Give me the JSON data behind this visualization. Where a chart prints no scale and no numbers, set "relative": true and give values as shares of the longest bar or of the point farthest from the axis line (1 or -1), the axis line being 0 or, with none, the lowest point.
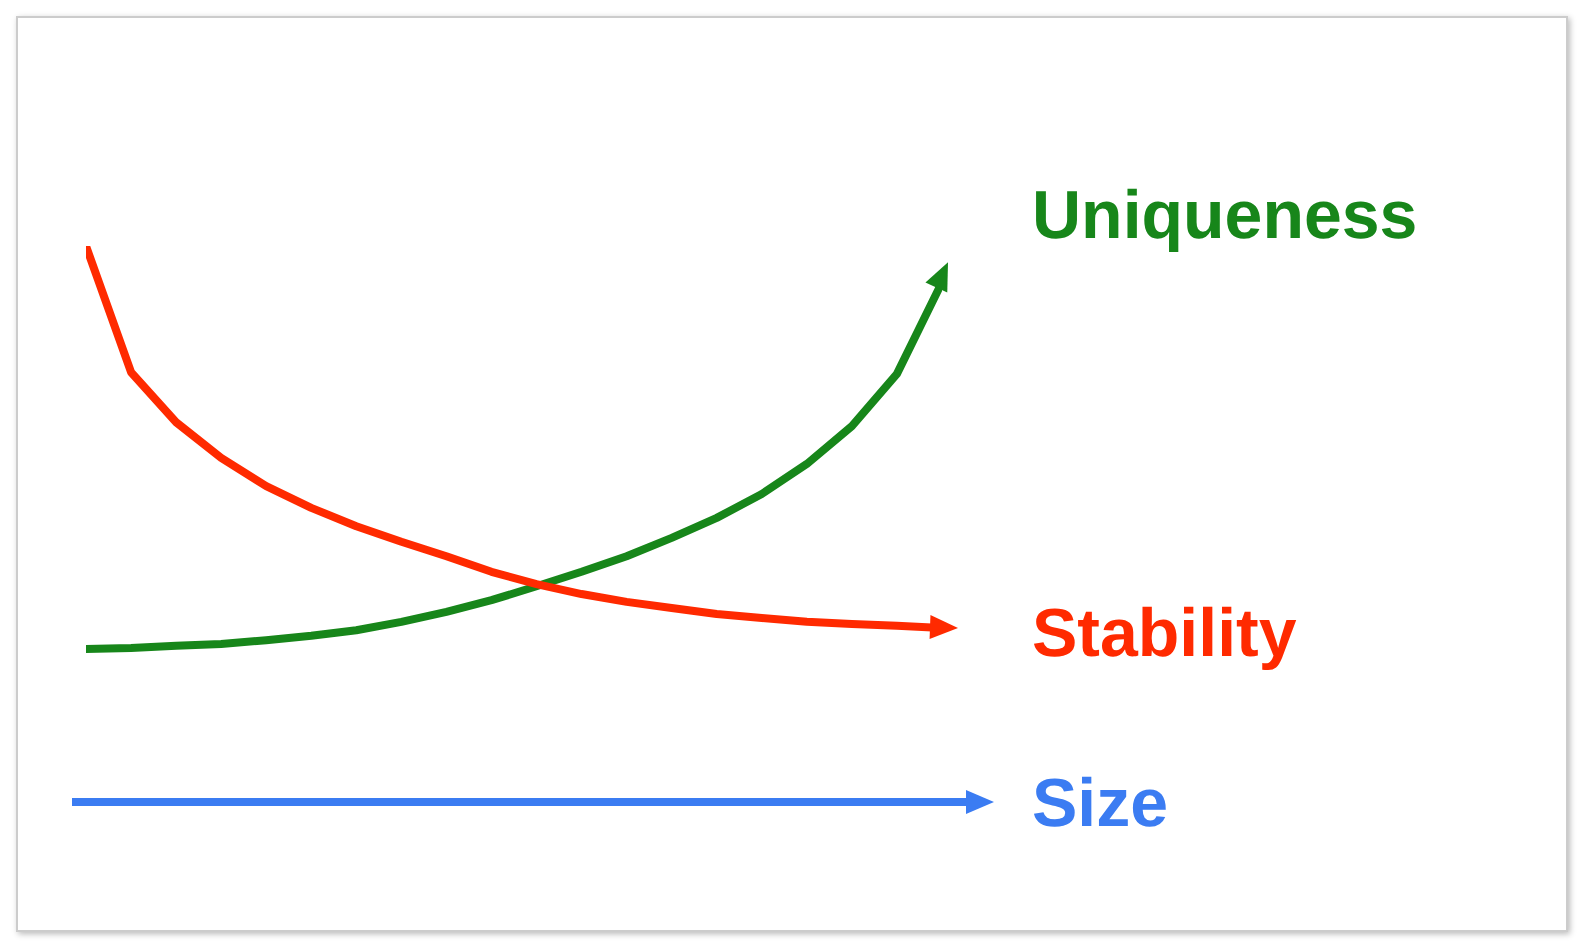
{
  "chart_data": {
    "type": "line",
    "relative": true,
    "xlabel": "Size",
    "marker": "none",
    "legend": "right",
    "grid": false,
    "categories": [
      null,
      null,
      null,
      null,
      null,
      null,
      null,
      null,
      null,
      null,
      null,
      null,
      null,
      null,
      null,
      null,
      null,
      null,
      null,
      null
    ],
    "series": [
      {
        "name": "Uniqueness",
        "color": "#17861a",
        "values": [
          0.275,
          0.277,
          0.281,
          0.284,
          0.291,
          0.299,
          0.309,
          0.324,
          0.342,
          0.363,
          0.388,
          0.414,
          0.442,
          0.475,
          0.511,
          0.554,
          0.608,
          0.676,
          0.77,
          0.935
        ]
      },
      {
        "name": "Stability",
        "color": "#ff2a00",
        "values": [
          1,
          0.773,
          0.683,
          0.619,
          0.568,
          0.529,
          0.496,
          0.468,
          0.442,
          0.414,
          0.392,
          0.374,
          0.36,
          0.349,
          0.338,
          0.331,
          0.324,
          0.32,
          0.317,
          0.313
        ]
      }
    ]
  }
}
